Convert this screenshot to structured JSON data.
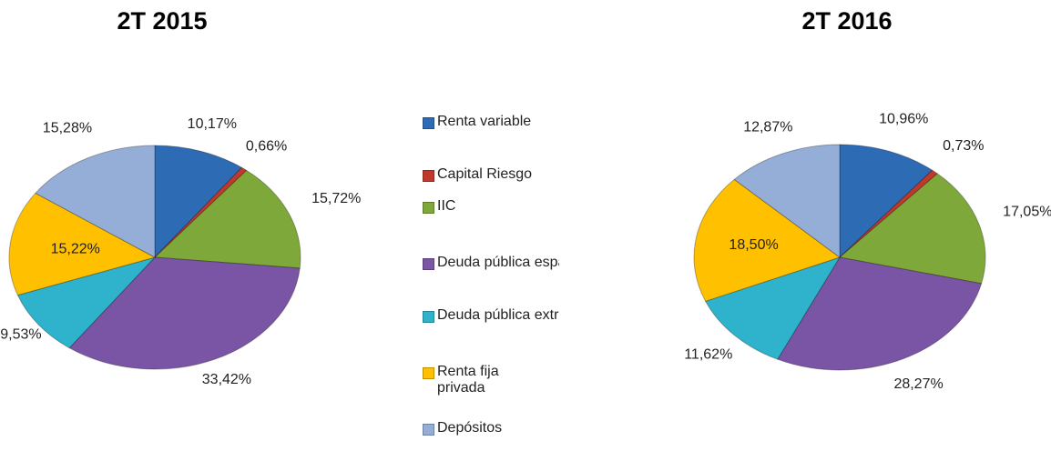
{
  "chart_data": [
    {
      "type": "pie",
      "title": "2T 2015",
      "values": [
        10.17,
        0.66,
        15.72,
        33.42,
        9.53,
        15.22,
        15.28
      ],
      "value_labels": [
        "10,17%",
        "0,66%",
        "15,72%",
        "33,42%",
        "9,53%",
        "15,22%",
        "15,28%"
      ]
    },
    {
      "type": "pie",
      "title": "2T 2016",
      "values": [
        10.96,
        0.73,
        17.05,
        28.27,
        11.62,
        18.5,
        12.87
      ],
      "value_labels": [
        "10,96%",
        "0,73%",
        "17,05%",
        "28,27%",
        "11,62%",
        "18,50%",
        "12,87%"
      ]
    }
  ],
  "legend": {
    "categories": [
      "Renta variable",
      "Capital Riesgo",
      "IIC",
      "Deuda pública española",
      "Deuda pública extranjera",
      "Renta fija privada",
      "Depósitos"
    ],
    "colors": [
      "#2e6bb5",
      "#c0392b",
      "#7fa83a",
      "#7a55a5",
      "#2fb3cc",
      "#ffc000",
      "#95aed8"
    ]
  }
}
